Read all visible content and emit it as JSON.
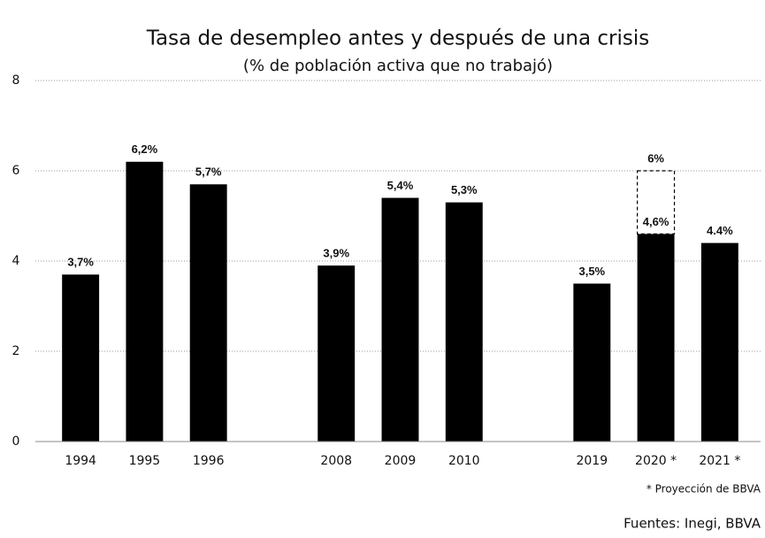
{
  "chart_data": {
    "type": "bar",
    "title": "Tasa de desempleo antes y después de una crisis",
    "subtitle": "(% de población activa que no trabajó)",
    "categories": [
      "1994",
      "1995",
      "1996",
      null,
      "2008",
      "2009",
      "2010",
      null,
      "2019",
      "2020 *",
      "2021 *"
    ],
    "values": [
      3.7,
      6.2,
      5.7,
      null,
      3.9,
      5.4,
      5.3,
      null,
      3.5,
      4.6,
      4.4
    ],
    "value_labels": [
      "3,7%",
      "6,2%",
      "5,7%",
      null,
      "3,9%",
      "5,4%",
      "5,3%",
      null,
      "3,5%",
      "4,6%",
      "4.4%"
    ],
    "projection_values": [
      null,
      null,
      null,
      null,
      null,
      null,
      null,
      null,
      null,
      6,
      null
    ],
    "projection_value_labels": [
      null,
      null,
      null,
      null,
      null,
      null,
      null,
      null,
      null,
      "6%",
      null
    ],
    "color": "#000000",
    "ylim": [
      0,
      8
    ],
    "yticks": [
      0,
      2,
      4,
      6,
      8
    ],
    "grid": true,
    "footnote": "* Proyección de BBVA",
    "source": "Fuentes: Inegi, BBVA"
  }
}
